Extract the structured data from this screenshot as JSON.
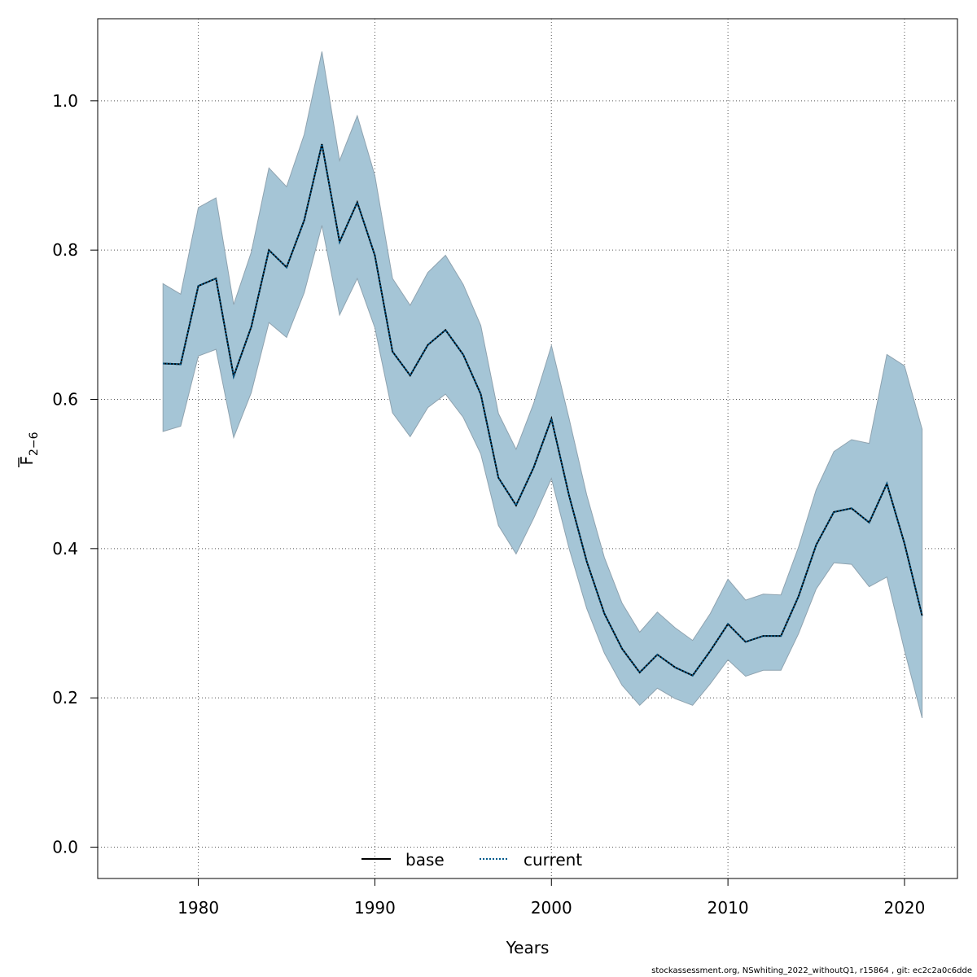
{
  "chart_data": {
    "type": "line",
    "xlabel": "Years",
    "ylabel": "F",
    "ylabel_subscript": "2−6",
    "xlim": [
      1974.3,
      2023
    ],
    "ylim": [
      -0.042,
      1.11
    ],
    "x_ticks": [
      1980,
      1990,
      2000,
      2010,
      2020
    ],
    "y_ticks": [
      0.0,
      0.2,
      0.4,
      0.6,
      0.8,
      1.0
    ],
    "x_tick_labels": [
      "1980",
      "1990",
      "2000",
      "2010",
      "2020"
    ],
    "y_tick_labels": [
      "0.0",
      "0.2",
      "0.4",
      "0.6",
      "0.8",
      "1.0"
    ],
    "grid": true,
    "legend_position": "bottom-center",
    "colors": {
      "band": "#a5c5d6",
      "band_edge": "#8fa3b0",
      "base": "#000000",
      "current": "#005a8c",
      "grid": "#555555"
    },
    "x": [
      1978,
      1979,
      1980,
      1981,
      1982,
      1983,
      1984,
      1985,
      1986,
      1987,
      1988,
      1989,
      1990,
      1991,
      1992,
      1993,
      1994,
      1995,
      1996,
      1997,
      1998,
      1999,
      2000,
      2001,
      2002,
      2003,
      2004,
      2005,
      2006,
      2007,
      2008,
      2009,
      2010,
      2011,
      2012,
      2013,
      2014,
      2015,
      2016,
      2017,
      2018,
      2019,
      2020,
      2021
    ],
    "series": [
      {
        "name": "base",
        "style": "solid",
        "values": [
          0.648,
          0.647,
          0.752,
          0.762,
          0.631,
          0.697,
          0.8,
          0.777,
          0.84,
          0.942,
          0.811,
          0.864,
          0.793,
          0.664,
          0.632,
          0.673,
          0.693,
          0.66,
          0.607,
          0.495,
          0.458,
          0.509,
          0.574,
          0.471,
          0.383,
          0.313,
          0.266,
          0.234,
          0.258,
          0.241,
          0.23,
          0.263,
          0.299,
          0.275,
          0.283,
          0.283,
          0.336,
          0.405,
          0.449,
          0.454,
          0.435,
          0.487,
          0.407,
          0.31
        ]
      },
      {
        "name": "current",
        "style": "dotted",
        "values": [
          0.648,
          0.647,
          0.752,
          0.762,
          0.631,
          0.697,
          0.8,
          0.777,
          0.84,
          0.942,
          0.811,
          0.864,
          0.793,
          0.664,
          0.632,
          0.673,
          0.693,
          0.66,
          0.607,
          0.495,
          0.458,
          0.509,
          0.574,
          0.471,
          0.383,
          0.313,
          0.266,
          0.234,
          0.258,
          0.241,
          0.23,
          0.263,
          0.299,
          0.275,
          0.283,
          0.283,
          0.336,
          0.405,
          0.449,
          0.454,
          0.435,
          0.487,
          0.407,
          0.31
        ]
      }
    ],
    "band": {
      "upper": [
        0.755,
        0.741,
        0.857,
        0.87,
        0.727,
        0.797,
        0.91,
        0.885,
        0.955,
        1.066,
        0.92,
        0.98,
        0.9,
        0.762,
        0.726,
        0.77,
        0.793,
        0.754,
        0.699,
        0.581,
        0.533,
        0.595,
        0.672,
        0.574,
        0.472,
        0.388,
        0.327,
        0.288,
        0.315,
        0.294,
        0.277,
        0.313,
        0.359,
        0.331,
        0.339,
        0.338,
        0.402,
        0.479,
        0.53,
        0.546,
        0.541,
        0.66,
        0.645,
        0.56
      ],
      "lower": [
        0.557,
        0.564,
        0.658,
        0.667,
        0.549,
        0.609,
        0.703,
        0.683,
        0.743,
        0.833,
        0.713,
        0.762,
        0.696,
        0.582,
        0.55,
        0.589,
        0.607,
        0.576,
        0.527,
        0.431,
        0.393,
        0.441,
        0.494,
        0.4,
        0.32,
        0.26,
        0.217,
        0.19,
        0.213,
        0.199,
        0.19,
        0.219,
        0.251,
        0.229,
        0.237,
        0.237,
        0.286,
        0.346,
        0.381,
        0.379,
        0.349,
        0.362,
        0.264,
        0.173
      ]
    }
  },
  "footer": "stockassessment.org, NSwhiting_2022_withoutQ1, r15864 , git: ec2c2a0c6dde"
}
